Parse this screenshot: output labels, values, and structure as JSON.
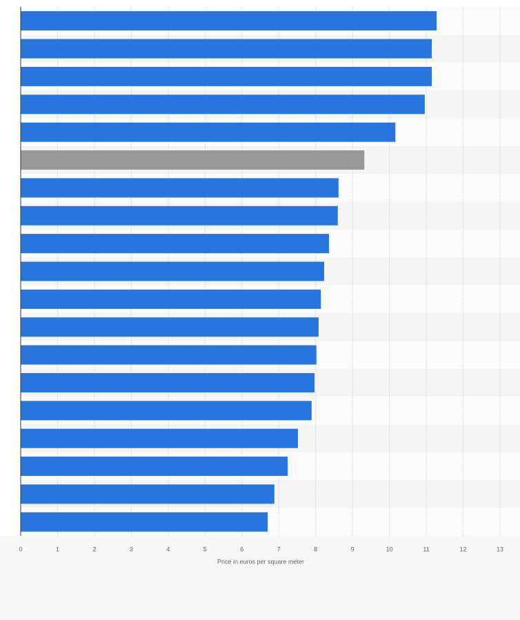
{
  "chart_data": {
    "type": "bar",
    "orientation": "horizontal",
    "x_label": "Price in euros per square meter",
    "categories": [
      null,
      null,
      null,
      null,
      null,
      null,
      null,
      null,
      null,
      null,
      null,
      null,
      null,
      null,
      null,
      null,
      null,
      null,
      null
    ],
    "values": [
      11.28,
      11.15,
      11.15,
      10.96,
      10.16,
      9.32,
      8.62,
      8.6,
      8.36,
      8.23,
      8.14,
      8.08,
      8.02,
      7.97,
      7.89,
      7.52,
      7.24,
      6.88,
      6.7
    ],
    "colors": [
      "#2876dd",
      "#2876dd",
      "#2876dd",
      "#2876dd",
      "#2876dd",
      "#999999",
      "#2876dd",
      "#2876dd",
      "#2876dd",
      "#2876dd",
      "#2876dd",
      "#2876dd",
      "#2876dd",
      "#2876dd",
      "#2876dd",
      "#2876dd",
      "#2876dd",
      "#2876dd",
      "#2876dd"
    ],
    "xlim": [
      0,
      13
    ],
    "xticks": [
      0,
      1,
      2,
      3,
      4,
      5,
      6,
      7,
      8,
      9,
      10,
      11,
      12,
      13
    ],
    "grid": true
  }
}
